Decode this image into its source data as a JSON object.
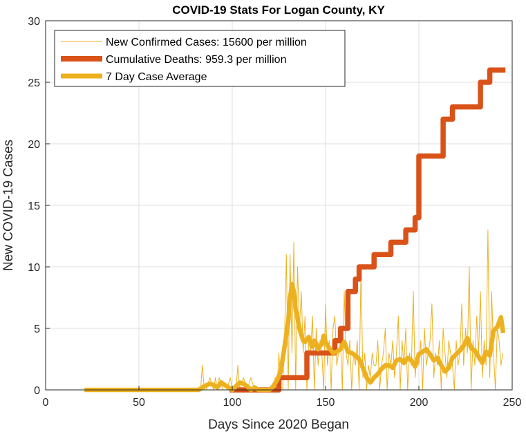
{
  "chart_data": {
    "type": "line",
    "title": "COVID-19 Stats For Logan County, KY",
    "xlabel": "Days Since 2020 Began",
    "ylabel": "New COVID-19 Cases",
    "xlim": [
      0,
      250
    ],
    "ylim": [
      0,
      30
    ],
    "xticks": [
      0,
      50,
      100,
      150,
      200,
      250
    ],
    "yticks": [
      0,
      5,
      10,
      15,
      20,
      25,
      30
    ],
    "grid": true,
    "legend_position": "top-left",
    "series": [
      {
        "name": "New Confirmed Cases: 15600 per million",
        "style": "thin",
        "color": "#EDB120",
        "x": [
          22,
          40,
          60,
          80,
          83,
          84,
          85,
          86,
          88,
          90,
          91,
          92,
          93,
          95,
          97,
          99,
          100,
          102,
          103,
          104,
          106,
          108,
          110,
          112,
          114,
          116,
          118,
          120,
          122,
          123,
          124,
          125,
          126,
          127,
          128,
          129,
          130,
          131,
          132,
          133,
          134,
          135,
          136,
          137,
          138,
          139,
          140,
          141,
          142,
          143,
          144,
          145,
          146,
          147,
          148,
          149,
          150,
          151,
          152,
          153,
          154,
          155,
          156,
          157,
          158,
          159,
          160,
          161,
          162,
          163,
          164,
          165,
          166,
          167,
          168,
          169,
          170,
          171,
          172,
          173,
          174,
          175,
          176,
          177,
          178,
          179,
          180,
          181,
          182,
          183,
          184,
          185,
          186,
          187,
          188,
          189,
          190,
          191,
          192,
          193,
          194,
          195,
          196,
          197,
          198,
          199,
          200,
          201,
          202,
          203,
          204,
          205,
          206,
          207,
          208,
          209,
          210,
          211,
          212,
          213,
          214,
          215,
          216,
          217,
          218,
          219,
          220,
          221,
          222,
          223,
          224,
          225,
          226,
          227,
          228,
          229,
          230,
          231,
          232,
          233,
          234,
          235,
          236,
          237,
          238,
          239,
          240,
          241,
          242,
          243,
          244,
          245
        ],
        "y": [
          0,
          0,
          0,
          0,
          0,
          2,
          0,
          0,
          1,
          0,
          1,
          0,
          1,
          0,
          0,
          1,
          0,
          0,
          2,
          0,
          1,
          0,
          1,
          0,
          0,
          0,
          0,
          0,
          0,
          1,
          0,
          3,
          0,
          0,
          4,
          11,
          0,
          11,
          3,
          12,
          0,
          10,
          5,
          8,
          3,
          6,
          0,
          4,
          3,
          6,
          0,
          5,
          2,
          4,
          3,
          0,
          7,
          2,
          4,
          0,
          5,
          6,
          2,
          3,
          4,
          0,
          8,
          3,
          2,
          4,
          0,
          3,
          2,
          4,
          0,
          10,
          1,
          3,
          0,
          2,
          1,
          3,
          2,
          2,
          4,
          0,
          2,
          3,
          5,
          0,
          3,
          2,
          4,
          1,
          3,
          6,
          0,
          4,
          2,
          5,
          0,
          3,
          2,
          8,
          1,
          3,
          2,
          4,
          0,
          5,
          2,
          3,
          4,
          7,
          1,
          3,
          2,
          4,
          0,
          5,
          3,
          1,
          4,
          3,
          2,
          0,
          4,
          2,
          3,
          7,
          2,
          5,
          3,
          10,
          0,
          4,
          2,
          6,
          3,
          8,
          1,
          4,
          2,
          13,
          1,
          8,
          3,
          0,
          5,
          4,
          2,
          3
        ],
        "draw_to": 245
      },
      {
        "name": "Cumulative Deaths: 959.3 per million",
        "style": "thick-step",
        "color": "#D95319",
        "x": [
          100,
          125,
          140,
          150,
          155,
          158,
          162,
          166,
          168,
          172,
          176,
          185,
          188,
          193,
          198,
          200,
          212,
          213,
          217,
          218,
          232,
          233,
          238,
          245
        ],
        "y": [
          0,
          1,
          3,
          3,
          4,
          5,
          8,
          9,
          10,
          10,
          11,
          12,
          12,
          13,
          14,
          19,
          19,
          22,
          22,
          23,
          23,
          25,
          26,
          26
        ]
      },
      {
        "name": "7 Day Case Average",
        "style": "thick",
        "color": "#EDB120",
        "x": [
          22,
          40,
          60,
          82,
          85,
          88,
          90,
          92,
          94,
          96,
          98,
          100,
          102,
          104,
          106,
          108,
          110,
          112,
          114,
          116,
          118,
          120,
          122,
          124,
          126,
          128,
          129,
          130,
          131,
          132,
          133,
          134,
          135,
          136,
          137,
          138,
          139,
          140,
          141,
          142,
          143,
          144,
          145,
          146,
          147,
          148,
          149,
          150,
          152,
          154,
          156,
          158,
          160,
          162,
          164,
          166,
          168,
          170,
          172,
          174,
          176,
          178,
          180,
          182,
          184,
          186,
          188,
          190,
          192,
          194,
          196,
          198,
          200,
          202,
          204,
          206,
          208,
          210,
          212,
          214,
          216,
          218,
          220,
          222,
          224,
          226,
          228,
          230,
          232,
          234,
          236,
          238,
          240,
          242,
          244,
          245
        ],
        "y": [
          0,
          0,
          0,
          0,
          0.3,
          0.5,
          0.4,
          0.2,
          0.6,
          0.4,
          0.2,
          0,
          0.3,
          0.6,
          0.5,
          0.3,
          0,
          0.2,
          0,
          0,
          0,
          0,
          0.3,
          0.8,
          1.5,
          3.5,
          4.5,
          5.5,
          7.5,
          8.6,
          8,
          6.5,
          5.8,
          5,
          4.5,
          4,
          3.9,
          4.1,
          4.3,
          3.9,
          3.5,
          4,
          3.8,
          3.3,
          3.6,
          3.7,
          4.4,
          3.9,
          3.4,
          3,
          3.1,
          3.3,
          3.9,
          3.1,
          3,
          2.8,
          2.5,
          1.8,
          1,
          0.6,
          1,
          1.3,
          1.7,
          2,
          2,
          1.8,
          2.4,
          2.5,
          2.2,
          2.6,
          2.4,
          1.9,
          2.9,
          3.1,
          3.3,
          2.9,
          2.4,
          2.6,
          2,
          1.5,
          1.8,
          2.6,
          2.9,
          3.2,
          3.6,
          4.2,
          3.4,
          3.2,
          2.7,
          2.2,
          3.1,
          2.8,
          4.8,
          5.1,
          5.9,
          4.8
        ]
      }
    ]
  }
}
